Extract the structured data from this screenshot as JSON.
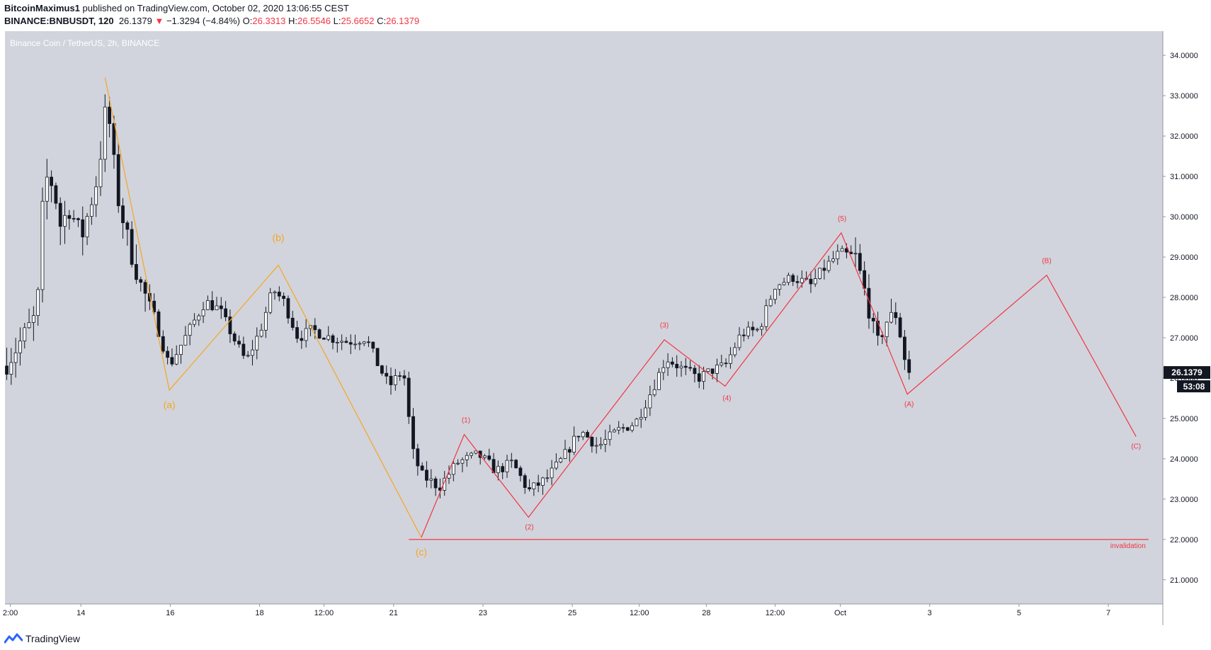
{
  "header": {
    "author": "BitcoinMaximus1",
    "published_text": "published on TradingView.com, October 02, 2020 13:06:55 CEST",
    "symbol": "BINANCE:BNBUSDT, 120",
    "last": "26.1379",
    "change_arrow": "▼",
    "change": "−1.3294 (−4.84%)",
    "o_label": "O:",
    "o_value": "26.3313",
    "h_label": "H:",
    "h_value": "26.5546",
    "l_label": "L:",
    "l_value": "25.6652",
    "c_label": "C:",
    "c_value": "26.1379"
  },
  "footer": {
    "brand": "TradingView",
    "logo_icon": "tradingview-logo-icon"
  },
  "colors": {
    "plot_bg": "#d1d4dc",
    "candle": "#131722",
    "orange": "#f5a623",
    "red": "#f23645",
    "axis_text": "#131722"
  },
  "chart_data": {
    "type": "candlestick",
    "title": "Binance Coin / TetherUS, 2h, BINANCE",
    "currency_label": "USDT",
    "ylim": [
      20.4,
      34.6
    ],
    "xlim": [
      0,
      64.8
    ],
    "y_ticks": [
      "21.0000",
      "22.0000",
      "23.0000",
      "24.0000",
      "25.0000",
      "26.0000",
      "27.0000",
      "28.0000",
      "29.0000",
      "30.0000",
      "31.0000",
      "32.0000",
      "33.0000",
      "34.0000"
    ],
    "x_ticks": [
      {
        "label": "2:00",
        "x": 0.3
      },
      {
        "label": "14",
        "x": 4.25
      },
      {
        "label": "16",
        "x": 9.25
      },
      {
        "label": "18",
        "x": 14.25
      },
      {
        "label": "12:00",
        "x": 17.85
      },
      {
        "label": "21",
        "x": 21.75
      },
      {
        "label": "23",
        "x": 26.75
      },
      {
        "label": "25",
        "x": 31.75
      },
      {
        "label": "12:00",
        "x": 35.5
      },
      {
        "label": "28",
        "x": 39.25
      },
      {
        "label": "12:00",
        "x": 43.1
      },
      {
        "label": "Oct",
        "x": 46.75
      },
      {
        "label": "3",
        "x": 51.75
      },
      {
        "label": "5",
        "x": 56.75
      },
      {
        "label": "7",
        "x": 61.75
      }
    ],
    "last_price_label": "26.1379",
    "last_price": 26.1379,
    "countdown_label": "53:08",
    "invalidation_level": 22.0,
    "invalidation_label": "invalidation",
    "invalidation_x_range": [
      22.6,
      64.0
    ],
    "orange_wave": [
      [
        5.6,
        33.45
      ],
      [
        9.2,
        25.7
      ],
      [
        15.3,
        28.8
      ],
      [
        23.3,
        22.05
      ]
    ],
    "orange_labels": [
      {
        "text": "(a)",
        "x": 9.2,
        "y": 25.25
      },
      {
        "text": "(b)",
        "x": 15.3,
        "y": 29.4
      },
      {
        "text": "(c)",
        "x": 23.3,
        "y": 21.6
      }
    ],
    "red_wave": [
      [
        23.3,
        22.05
      ],
      [
        25.7,
        24.6
      ],
      [
        29.3,
        22.55
      ],
      [
        36.9,
        26.95
      ],
      [
        40.3,
        25.8
      ],
      [
        46.8,
        29.6
      ],
      [
        50.5,
        25.6
      ],
      [
        58.3,
        28.55
      ],
      [
        63.3,
        24.55
      ]
    ],
    "red_labels": [
      {
        "text": "(1)",
        "x": 25.8,
        "y": 24.9
      },
      {
        "text": "(2)",
        "x": 29.35,
        "y": 22.25
      },
      {
        "text": "(3)",
        "x": 36.9,
        "y": 27.25
      },
      {
        "text": "(4)",
        "x": 40.4,
        "y": 25.45
      },
      {
        "text": "(5)",
        "x": 46.85,
        "y": 29.9
      },
      {
        "text": "(A)",
        "x": 50.6,
        "y": 25.3
      },
      {
        "text": "(B)",
        "x": 58.3,
        "y": 28.85
      },
      {
        "text": "(C)",
        "x": 63.3,
        "y": 24.25
      }
    ],
    "price_path": [
      [
        0,
        26.3
      ],
      [
        1,
        27.0
      ],
      [
        1.8,
        27.6
      ],
      [
        2.2,
        31.0
      ],
      [
        2.7,
        30.8
      ],
      [
        3.1,
        29.8
      ],
      [
        3.6,
        30.2
      ],
      [
        4.3,
        29.5
      ],
      [
        5.2,
        31.0
      ],
      [
        5.7,
        32.9
      ],
      [
        6.3,
        30.5
      ],
      [
        7.0,
        29.2
      ],
      [
        7.6,
        28.3
      ],
      [
        8.3,
        27.6
      ],
      [
        9.2,
        26.3
      ],
      [
        10.2,
        27.1
      ],
      [
        11.2,
        27.9
      ],
      [
        12.0,
        27.7
      ],
      [
        12.9,
        26.9
      ],
      [
        13.5,
        26.4
      ],
      [
        14.3,
        27.2
      ],
      [
        15.0,
        28.2
      ],
      [
        15.6,
        27.9
      ],
      [
        16.4,
        27.0
      ],
      [
        17.2,
        27.2
      ],
      [
        18.2,
        27.0
      ],
      [
        19.2,
        26.9
      ],
      [
        20.2,
        27.0
      ],
      [
        20.8,
        26.4
      ],
      [
        21.5,
        25.8
      ],
      [
        22.3,
        26.2
      ],
      [
        22.8,
        24.2
      ],
      [
        23.3,
        23.6
      ],
      [
        24.3,
        23.3
      ],
      [
        25.3,
        23.9
      ],
      [
        26.5,
        24.1
      ],
      [
        27.5,
        23.7
      ],
      [
        28.4,
        23.9
      ],
      [
        29.3,
        23.2
      ],
      [
        30.3,
        23.5
      ],
      [
        31.2,
        24.0
      ],
      [
        32.2,
        24.7
      ],
      [
        33.2,
        24.3
      ],
      [
        34.3,
        24.7
      ],
      [
        35.3,
        24.9
      ],
      [
        36.2,
        25.7
      ],
      [
        37.0,
        26.5
      ],
      [
        38.0,
        26.2
      ],
      [
        38.8,
        26.0
      ],
      [
        39.6,
        26.2
      ],
      [
        40.3,
        26.3
      ],
      [
        41.2,
        27.1
      ],
      [
        42.2,
        27.2
      ],
      [
        43.1,
        28.3
      ],
      [
        44.1,
        28.5
      ],
      [
        45.1,
        28.3
      ],
      [
        45.8,
        28.7
      ],
      [
        46.7,
        29.1
      ],
      [
        47.6,
        29.0
      ],
      [
        48.2,
        28.0
      ],
      [
        48.8,
        26.8
      ],
      [
        49.3,
        27.4
      ],
      [
        49.9,
        27.6
      ],
      [
        50.3,
        26.6
      ],
      [
        50.6,
        26.1
      ]
    ]
  }
}
